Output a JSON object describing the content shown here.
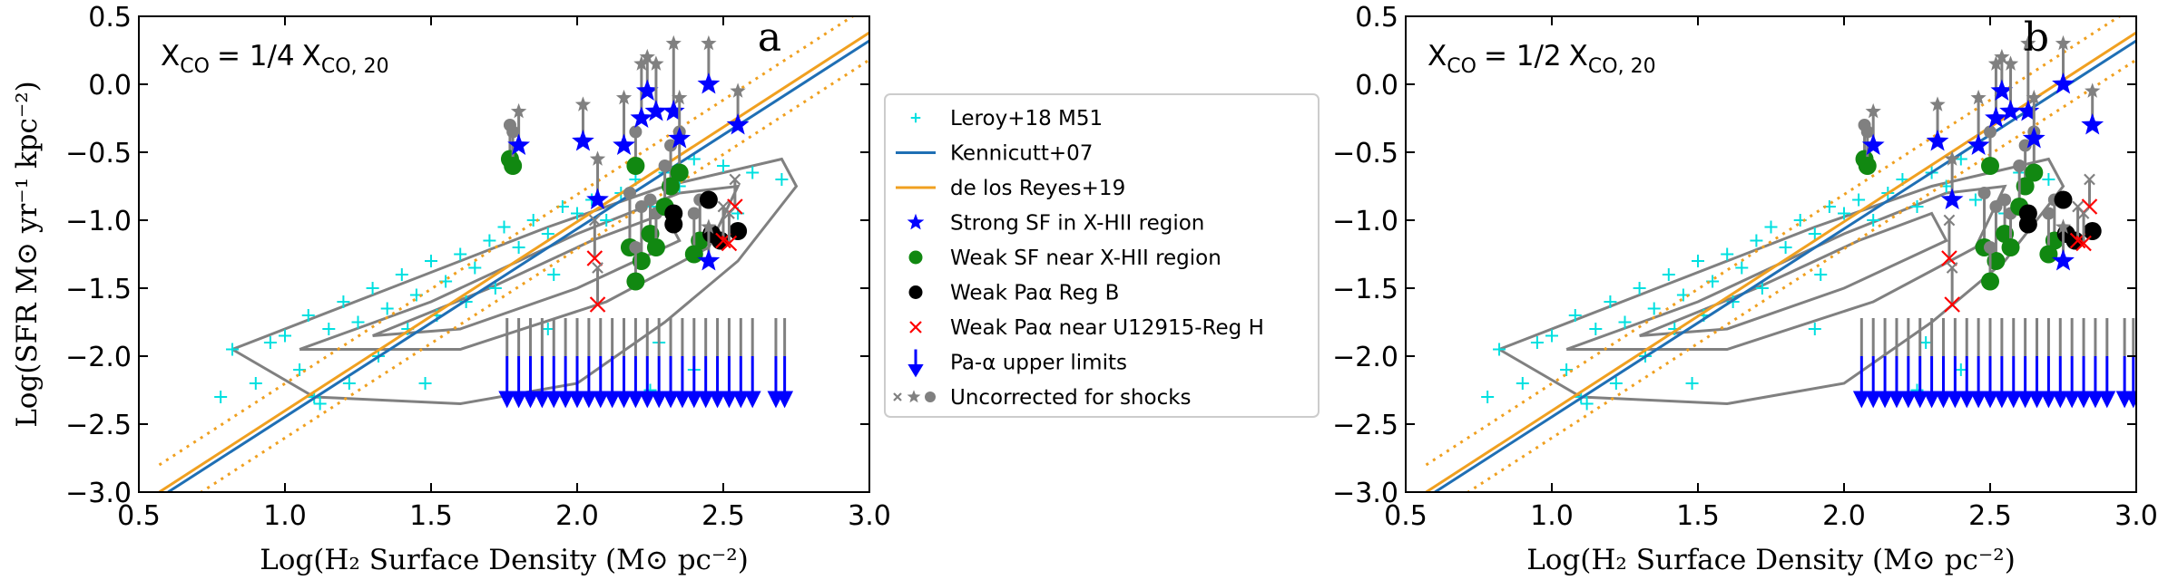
{
  "chart_data": [
    {
      "type": "scatter",
      "annotation": {
        "var": "X",
        "sub": "CO",
        "eq": "= 1/4",
        "var2": "X",
        "sub2": "CO, 20"
      },
      "panel_label": "a",
      "xlabel": "Log(H₂ Surface Density (M⊙ pc⁻²)",
      "ylabel": "Log(SFR M⊙ yr⁻¹ kpc⁻²)",
      "xlim": [
        0.5,
        3.0
      ],
      "ylim": [
        -3.0,
        0.5
      ],
      "xticks": [
        0.5,
        {
          "value": 1.0,
          "label": "1.0"
        },
        1.5,
        {
          "value": 2.0,
          "label": "2.0"
        },
        2.5,
        {
          "value": 3.0,
          "label": "3.0"
        }
      ],
      "yticks": [
        {
          "value": -3.0,
          "label": "−3.0"
        },
        {
          "value": -2.5,
          "label": "−2.5"
        },
        {
          "value": -2.0,
          "label": "−2.0"
        },
        {
          "value": -1.5,
          "label": "−1.5"
        },
        {
          "value": -1.0,
          "label": "−1.0"
        },
        {
          "value": -0.5,
          "label": "−0.5"
        },
        {
          "value": 0,
          "label": "0.0"
        },
        0.5
      ],
      "contours": {
        "color": "#808080",
        "lines": [
          {
            "x": [
              0.82,
              1.3,
              1.9,
              2.3,
              2.7,
              2.75,
              2.55,
              2.3,
              2.0,
              1.6,
              1.1,
              0.82
            ],
            "y": [
              -1.95,
              -1.55,
              -1.05,
              -0.75,
              -0.55,
              -0.75,
              -1.3,
              -1.75,
              -2.2,
              -2.35,
              -2.3,
              -1.95
            ]
          },
          {
            "x": [
              1.05,
              1.5,
              2.0,
              2.35,
              2.55,
              2.45,
              2.1,
              1.6,
              1.05
            ],
            "y": [
              -1.95,
              -1.6,
              -1.1,
              -0.8,
              -0.75,
              -1.2,
              -1.6,
              -1.95,
              -1.95
            ]
          },
          {
            "x": [
              1.3,
              1.7,
              2.05,
              2.3,
              2.35,
              2.0,
              1.6,
              1.3
            ],
            "y": [
              -1.85,
              -1.5,
              -1.15,
              -0.95,
              -1.15,
              -1.5,
              -1.8,
              -1.85
            ]
          }
        ]
      },
      "uncorrected_name": "Uncorrected for shocks",
      "uncorrected_color": "#808080",
      "series": [
        {
          "name": "Leroy+18 M51",
          "kind": "plus",
          "color": "#00e0e0",
          "x": [
            0.82,
            0.9,
            0.95,
            1.0,
            1.05,
            1.08,
            1.1,
            1.15,
            1.2,
            1.22,
            1.25,
            1.3,
            1.32,
            1.35,
            1.4,
            1.42,
            1.45,
            1.5,
            1.52,
            1.55,
            1.6,
            1.62,
            1.65,
            1.7,
            1.72,
            1.75,
            1.8,
            1.85,
            1.9,
            1.92,
            1.95,
            2.0,
            2.05,
            2.1,
            2.15,
            2.2,
            2.25,
            2.3,
            2.35,
            2.4,
            2.45,
            2.5,
            2.55,
            2.6,
            2.7,
            0.78,
            1.12,
            1.48,
            1.9,
            2.28,
            2.25,
            2.4
          ],
          "values": [
            -1.95,
            -2.2,
            -1.9,
            -1.85,
            -2.1,
            -1.7,
            -2.3,
            -1.8,
            -1.6,
            -2.2,
            -1.75,
            -1.5,
            -2.0,
            -1.65,
            -1.4,
            -1.8,
            -1.55,
            -1.3,
            -1.7,
            -1.45,
            -1.25,
            -1.6,
            -1.35,
            -1.15,
            -1.5,
            -1.05,
            -1.2,
            -1.0,
            -1.1,
            -1.4,
            -0.9,
            -0.95,
            -0.85,
            -1.0,
            -0.8,
            -0.7,
            -0.9,
            -0.65,
            -0.75,
            -0.55,
            -0.85,
            -0.6,
            -0.95,
            -0.65,
            -0.7,
            -2.3,
            -2.35,
            -2.2,
            -1.8,
            -1.9,
            -2.25,
            -2.1
          ]
        },
        {
          "name": "Kennicutt+07",
          "kind": "line",
          "color": "#1f6fb4",
          "x": [
            0.6,
            3.0
          ],
          "values": [
            -3.0,
            0.32
          ]
        },
        {
          "name": "de los Reyes+19",
          "kind": "line",
          "color": "#f0a020",
          "x": [
            0.57,
            3.0
          ],
          "values": [
            -3.0,
            0.38
          ],
          "lower": [
            -3.2,
            0.18
          ],
          "upper": [
            -2.8,
            0.58
          ]
        },
        {
          "name": "Strong SF in X-HII region",
          "kind": "star",
          "color": "#0000ff",
          "x": [
            1.8,
            2.02,
            2.16,
            2.22,
            2.24,
            2.27,
            2.33,
            2.35,
            2.45,
            2.55,
            2.07,
            2.45
          ],
          "values": [
            -0.45,
            -0.42,
            -0.45,
            -0.25,
            -0.05,
            -0.2,
            -0.2,
            -0.4,
            0.0,
            -0.3,
            -0.85,
            -1.3
          ],
          "uncorrected": [
            -0.2,
            -0.15,
            -0.1,
            0.15,
            0.2,
            0.15,
            0.3,
            -0.1,
            0.3,
            -0.05,
            -0.55,
            -1.05
          ]
        },
        {
          "name": "Weak SF near X-HII region",
          "kind": "circle",
          "color": "#118811",
          "x": [
            1.77,
            1.78,
            2.2,
            2.18,
            2.22,
            2.25,
            2.27,
            2.2,
            2.32,
            2.35,
            2.42,
            2.4,
            2.3
          ],
          "values": [
            -0.55,
            -0.6,
            -0.6,
            -1.2,
            -1.3,
            -1.1,
            -1.2,
            -1.45,
            -0.75,
            -0.65,
            -1.15,
            -1.25,
            -0.9
          ],
          "uncorrected": [
            -0.3,
            -0.35,
            -0.35,
            -0.8,
            -0.9,
            -0.85,
            -0.95,
            -1.2,
            -0.45,
            -0.35,
            -0.85,
            -0.95,
            -0.6
          ]
        },
        {
          "name": "Weak Paα Reg B",
          "kind": "circle",
          "color": "#000000",
          "x": [
            2.33,
            2.33,
            2.45,
            2.46,
            2.55,
            2.49
          ],
          "values": [
            -0.95,
            -1.03,
            -0.85,
            -1.1,
            -1.08,
            -1.15
          ]
        },
        {
          "name": "Weak Paα near U12915-Reg H",
          "kind": "cross",
          "color": "#ff0000",
          "x": [
            2.06,
            2.07,
            2.5,
            2.54,
            2.52
          ],
          "values": [
            -1.28,
            -1.62,
            -1.15,
            -0.9,
            -1.17
          ],
          "uncorrected": [
            -1.0,
            -1.35,
            -0.9,
            -0.7,
            -0.95
          ]
        },
        {
          "name": "Pa-α upper limits",
          "kind": "arrow",
          "color": "#0000ff",
          "x": [
            1.76,
            1.8,
            1.84,
            1.88,
            1.92,
            1.96,
            2.0,
            2.04,
            2.08,
            2.12,
            2.16,
            2.2,
            2.24,
            2.28,
            2.32,
            2.36,
            2.4,
            2.44,
            2.48,
            2.52,
            2.56,
            2.6,
            2.68,
            2.71
          ],
          "values": [
            -2.0,
            -2.0,
            -2.0,
            -2.0,
            -2.0,
            -2.0,
            -2.0,
            -2.0,
            -2.0,
            -2.0,
            -2.0,
            -2.0,
            -2.0,
            -2.0,
            -2.0,
            -2.0,
            -2.0,
            -2.0,
            -2.0,
            -2.0,
            -2.0,
            -2.0,
            -2.0,
            -2.0
          ],
          "uncorrected": [
            -1.72,
            -1.72,
            -1.72,
            -1.72,
            -1.72,
            -1.72,
            -1.72,
            -1.72,
            -1.72,
            -1.72,
            -1.72,
            -1.72,
            -1.72,
            -1.72,
            -1.72,
            -1.72,
            -1.72,
            -1.72,
            -1.72,
            -1.72,
            -1.72,
            -1.72,
            -1.72,
            -1.72
          ]
        }
      ]
    },
    {
      "type": "scatter",
      "annotation": {
        "var": "X",
        "sub": "CO",
        "eq": "= 1/2",
        "var2": "X",
        "sub2": "CO, 20"
      },
      "panel_label": "b",
      "xlabel": "Log(H₂ Surface Density (M⊙ pc⁻²)",
      "xlim": [
        0.5,
        3.0
      ],
      "ylim": [
        -3.0,
        0.5
      ],
      "xticks": [
        0.5,
        {
          "value": 1.0,
          "label": "1.0"
        },
        1.5,
        {
          "value": 2.0,
          "label": "2.0"
        },
        2.5,
        {
          "value": 3.0,
          "label": "3.0"
        }
      ],
      "yticks": [
        {
          "value": -3.0,
          "label": "−3.0"
        },
        {
          "value": -2.5,
          "label": "−2.5"
        },
        {
          "value": -2.0,
          "label": "−2.0"
        },
        {
          "value": -1.5,
          "label": "−1.5"
        },
        {
          "value": -1.0,
          "label": "−1.0"
        },
        {
          "value": -0.5,
          "label": "−0.5"
        },
        {
          "value": 0,
          "label": "0.0"
        },
        0.5
      ],
      "contours": {
        "color": "#808080",
        "lines": [
          {
            "x": [
              0.82,
              1.3,
              1.9,
              2.3,
              2.7,
              2.75,
              2.55,
              2.3,
              2.0,
              1.6,
              1.1,
              0.82
            ],
            "y": [
              -1.95,
              -1.55,
              -1.05,
              -0.75,
              -0.55,
              -0.75,
              -1.3,
              -1.75,
              -2.2,
              -2.35,
              -2.3,
              -1.95
            ]
          },
          {
            "x": [
              1.05,
              1.5,
              2.0,
              2.35,
              2.55,
              2.45,
              2.1,
              1.6,
              1.05
            ],
            "y": [
              -1.95,
              -1.6,
              -1.1,
              -0.8,
              -0.75,
              -1.2,
              -1.6,
              -1.95,
              -1.95
            ]
          },
          {
            "x": [
              1.3,
              1.7,
              2.05,
              2.3,
              2.35,
              2.0,
              1.6,
              1.3
            ],
            "y": [
              -1.85,
              -1.5,
              -1.15,
              -0.95,
              -1.15,
              -1.5,
              -1.8,
              -1.85
            ]
          }
        ]
      },
      "uncorrected_color": "#808080",
      "series": [
        {
          "name": "Leroy+18 M51",
          "kind": "plus",
          "color": "#00e0e0",
          "x": [
            0.82,
            0.9,
            0.95,
            1.0,
            1.05,
            1.08,
            1.1,
            1.15,
            1.2,
            1.22,
            1.25,
            1.3,
            1.32,
            1.35,
            1.4,
            1.42,
            1.45,
            1.5,
            1.52,
            1.55,
            1.6,
            1.62,
            1.65,
            1.7,
            1.72,
            1.75,
            1.8,
            1.85,
            1.9,
            1.92,
            1.95,
            2.0,
            2.05,
            2.1,
            2.15,
            2.2,
            2.25,
            2.3,
            2.35,
            2.4,
            2.45,
            2.5,
            2.55,
            2.6,
            2.7,
            0.78,
            1.12,
            1.48,
            1.9,
            2.28,
            2.25,
            2.4
          ],
          "values": [
            -1.95,
            -2.2,
            -1.9,
            -1.85,
            -2.1,
            -1.7,
            -2.3,
            -1.8,
            -1.6,
            -2.2,
            -1.75,
            -1.5,
            -2.0,
            -1.65,
            -1.4,
            -1.8,
            -1.55,
            -1.3,
            -1.7,
            -1.45,
            -1.25,
            -1.6,
            -1.35,
            -1.15,
            -1.5,
            -1.05,
            -1.2,
            -1.0,
            -1.1,
            -1.4,
            -0.9,
            -0.95,
            -0.85,
            -1.0,
            -0.8,
            -0.7,
            -0.9,
            -0.65,
            -0.75,
            -0.55,
            -0.85,
            -0.6,
            -0.95,
            -0.65,
            -0.7,
            -2.3,
            -2.35,
            -2.2,
            -1.8,
            -1.9,
            -2.25,
            -2.1
          ]
        },
        {
          "name": "Kennicutt+07",
          "kind": "line",
          "color": "#1f6fb4",
          "x": [
            0.6,
            3.0
          ],
          "values": [
            -3.0,
            0.32
          ]
        },
        {
          "name": "de los Reyes+19",
          "kind": "line",
          "color": "#f0a020",
          "x": [
            0.57,
            3.0
          ],
          "values": [
            -3.0,
            0.38
          ],
          "lower": [
            -3.2,
            0.18
          ],
          "upper": [
            -2.8,
            0.58
          ]
        },
        {
          "name": "Strong SF in X-HII region",
          "kind": "star",
          "color": "#0000ff",
          "x": [
            2.1,
            2.32,
            2.46,
            2.52,
            2.54,
            2.57,
            2.63,
            2.65,
            2.75,
            2.85,
            2.37,
            2.75
          ],
          "values": [
            -0.45,
            -0.42,
            -0.45,
            -0.25,
            -0.05,
            -0.2,
            -0.2,
            -0.4,
            0.0,
            -0.3,
            -0.85,
            -1.3
          ],
          "uncorrected": [
            -0.2,
            -0.15,
            -0.1,
            0.15,
            0.2,
            0.15,
            0.3,
            -0.1,
            0.3,
            -0.05,
            -0.55,
            -1.05
          ]
        },
        {
          "name": "Weak SF near X-HII region",
          "kind": "circle",
          "color": "#118811",
          "x": [
            2.07,
            2.08,
            2.5,
            2.48,
            2.52,
            2.55,
            2.57,
            2.5,
            2.62,
            2.65,
            2.72,
            2.7,
            2.6
          ],
          "values": [
            -0.55,
            -0.6,
            -0.6,
            -1.2,
            -1.3,
            -1.1,
            -1.2,
            -1.45,
            -0.75,
            -0.65,
            -1.15,
            -1.25,
            -0.9
          ],
          "uncorrected": [
            -0.3,
            -0.35,
            -0.35,
            -0.8,
            -0.9,
            -0.85,
            -0.95,
            -1.2,
            -0.45,
            -0.35,
            -0.85,
            -0.95,
            -0.6
          ]
        },
        {
          "name": "Weak Paα Reg B",
          "kind": "circle",
          "color": "#000000",
          "x": [
            2.63,
            2.63,
            2.75,
            2.76,
            2.85,
            2.79
          ],
          "values": [
            -0.95,
            -1.03,
            -0.85,
            -1.1,
            -1.08,
            -1.15
          ]
        },
        {
          "name": "Weak Paα near U12915-Reg H",
          "kind": "cross",
          "color": "#ff0000",
          "x": [
            2.36,
            2.37,
            2.8,
            2.84,
            2.82
          ],
          "values": [
            -1.28,
            -1.62,
            -1.15,
            -0.9,
            -1.17
          ],
          "uncorrected": [
            -1.0,
            -1.35,
            -0.9,
            -0.7,
            -0.95
          ]
        },
        {
          "name": "Pa-α upper limits",
          "kind": "arrow",
          "color": "#0000ff",
          "x": [
            2.06,
            2.1,
            2.14,
            2.18,
            2.22,
            2.26,
            2.3,
            2.34,
            2.38,
            2.42,
            2.46,
            2.5,
            2.54,
            2.58,
            2.62,
            2.66,
            2.7,
            2.74,
            2.78,
            2.82,
            2.86,
            2.9,
            2.96,
            2.99
          ],
          "values": [
            -2.0,
            -2.0,
            -2.0,
            -2.0,
            -2.0,
            -2.0,
            -2.0,
            -2.0,
            -2.0,
            -2.0,
            -2.0,
            -2.0,
            -2.0,
            -2.0,
            -2.0,
            -2.0,
            -2.0,
            -2.0,
            -2.0,
            -2.0,
            -2.0,
            -2.0,
            -2.0,
            -2.0
          ],
          "uncorrected": [
            -1.72,
            -1.72,
            -1.72,
            -1.72,
            -1.72,
            -1.72,
            -1.72,
            -1.72,
            -1.72,
            -1.72,
            -1.72,
            -1.72,
            -1.72,
            -1.72,
            -1.72,
            -1.72,
            -1.72,
            -1.72,
            -1.72,
            -1.72,
            -1.72,
            -1.72,
            -1.72,
            -1.72
          ]
        }
      ]
    }
  ]
}
